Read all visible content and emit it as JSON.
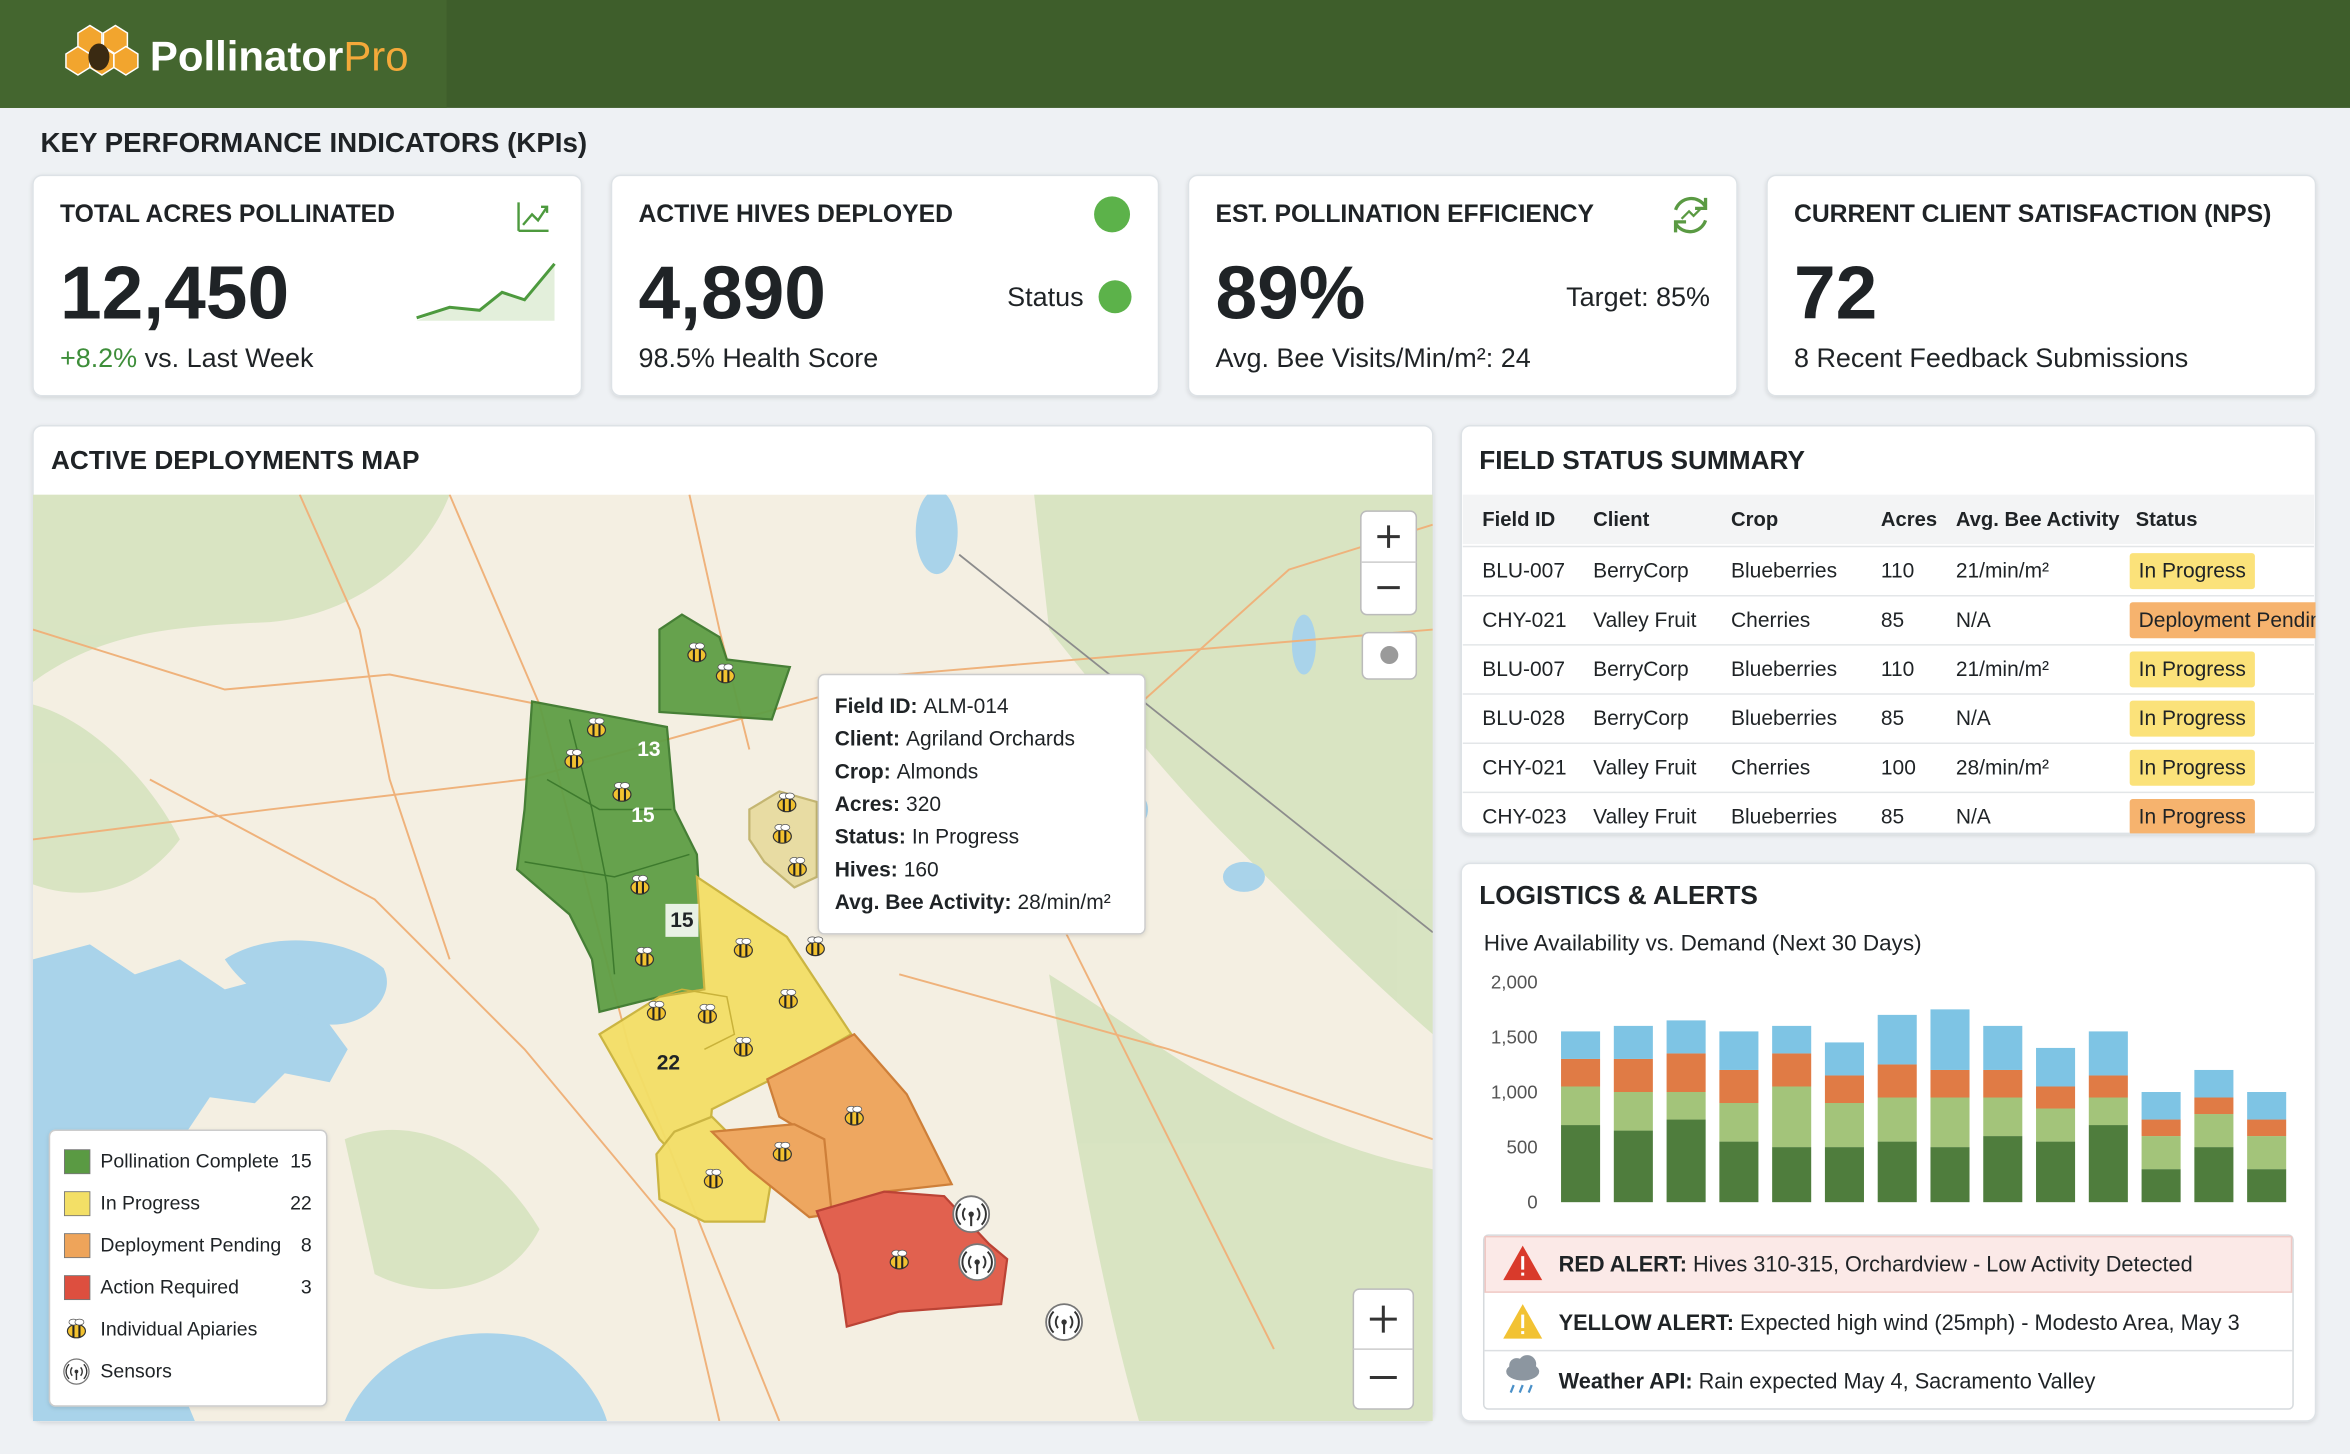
{
  "header": {
    "brand": "Pollinator",
    "brand_suffix": "Pro"
  },
  "kpi_section": {
    "title": "KEY PERFORMANCE INDICATORS (KPIs)"
  },
  "kpis": [
    {
      "title": "TOTAL ACRES POLLINATED",
      "value": "12,450",
      "change": "+8.2%",
      "change_text": "vs. Last Week"
    },
    {
      "title": "ACTIVE HIVES DEPLOYED",
      "value": "4,890",
      "status": "Status",
      "note": "98.5% Health Score"
    },
    {
      "title": "EST. POLLINATION EFFICIENCY",
      "value": "89%",
      "target": "Target: 85%",
      "note": "Avg. Bee Visits/Min/m²: 24"
    },
    {
      "title": "CURRENT CLIENT SATISFACTION (NPS)",
      "value": "72",
      "note": "8 Recent Feedback Submissions"
    }
  ],
  "map": {
    "title": "ACTIVE DEPLOYMENTS MAP",
    "field_labels": [
      "13",
      "15",
      "15",
      "22"
    ],
    "tooltip": [
      {
        "label": "Field ID:",
        "value": "ALM-014"
      },
      {
        "label": "Client:",
        "value": "Agriland Orchards"
      },
      {
        "label": "Crop:",
        "value": "Almonds"
      },
      {
        "label": "Acres:",
        "value": 320
      },
      {
        "label": "Status:",
        "value": "In Progress"
      },
      {
        "label": "Hives:",
        "value": 160
      },
      {
        "label": "Avg. Bee Activity:",
        "value": "28/min/m²"
      }
    ],
    "legend": [
      {
        "label": "Pollination Complete",
        "count": 15,
        "color": "#5a9a43"
      },
      {
        "label": "In Progress",
        "count": 22,
        "color": "#f3df66"
      },
      {
        "label": "Deployment Pending",
        "count": 8,
        "color": "#eea45a"
      },
      {
        "label": "Action Required",
        "count": 3,
        "color": "#dd4f3f"
      },
      {
        "label": "Individual Apiaries"
      },
      {
        "label": "Sensors"
      }
    ]
  },
  "field_status": {
    "title": "FIELD STATUS SUMMARY",
    "columns": [
      "Field ID",
      "Client",
      "Crop",
      "Acres",
      "Avg. Bee Activity",
      "Status"
    ],
    "rows": [
      [
        "BLU-007",
        "BerryCorp",
        "Blueberries",
        110,
        "21/min/m²",
        "In Progress"
      ],
      [
        "CHY-021",
        "Valley Fruit",
        "Cherries",
        85,
        "N/A",
        "Deployment Pendin"
      ],
      [
        "BLU-007",
        "BerryCorp",
        "Blueberries",
        110,
        "21/min/m²",
        "In Progress"
      ],
      [
        "BLU-028",
        "BerryCorp",
        "Blueberries",
        85,
        "N/A",
        "In Progress"
      ],
      [
        "CHY-021",
        "Valley Fruit",
        "Cherries",
        100,
        "28/min/m²",
        "In Progress"
      ],
      [
        "CHY-023",
        "Valley Fruit",
        "Blueberries",
        85,
        "N/A",
        "In Progress"
      ]
    ],
    "status_colors": [
      "#fbe27a",
      "#f6b36e",
      "#fbe27a",
      "#fbe27a",
      "#fbe27a",
      "#f6b36e"
    ]
  },
  "logistics": {
    "title": "LOGISTICS & ALERTS",
    "chart": {
      "type": "bar",
      "stacked": true,
      "title": "Hive Availability vs. Demand (Next 30 Days)",
      "ylim": [
        0,
        2000
      ],
      "yticks": [
        0,
        500,
        {
          "value": 1000,
          "label": "1,000"
        },
        {
          "value": 1500,
          "label": "1,500"
        },
        {
          "value": 2000,
          "label": "2,000"
        }
      ],
      "grid": false,
      "series": [
        {
          "color": "#4f7d3d",
          "values": [
            700,
            650,
            750,
            550,
            500,
            500,
            550,
            500,
            600,
            550,
            700,
            300,
            500,
            300
          ]
        },
        {
          "color": "#a3c47a",
          "values": [
            350,
            350,
            250,
            350,
            550,
            400,
            400,
            450,
            350,
            300,
            250,
            300,
            300,
            300
          ]
        },
        {
          "color": "#e07b45",
          "values": [
            250,
            300,
            350,
            300,
            300,
            250,
            300,
            250,
            250,
            200,
            200,
            150,
            150,
            150
          ]
        },
        {
          "color": "#7ec4e4",
          "values": [
            250,
            300,
            300,
            350,
            250,
            300,
            450,
            550,
            400,
            350,
            400,
            250,
            250,
            250
          ]
        }
      ]
    },
    "alerts": [
      {
        "label": "RED ALERT:",
        "text": "Hives 310-315, Orchardview - Low Activity Detected"
      },
      {
        "label": "YELLOW ALERT:",
        "text": "Expected high wind (25mph) - Modesto Area, May 3"
      },
      {
        "label": "Weather API:",
        "text": "Rain expected May 4, Sacramento Valley"
      }
    ]
  }
}
